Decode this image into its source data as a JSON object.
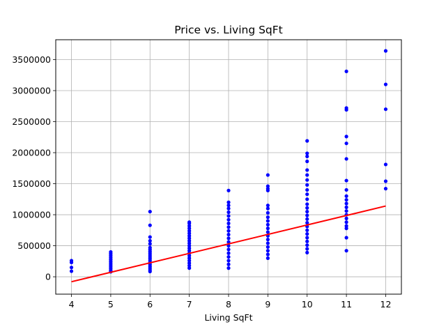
{
  "chart_data": {
    "type": "scatter",
    "title": "Price vs. Living SqFt",
    "xlabel": "Living SqFt",
    "ylabel": "",
    "xlim": [
      3.6,
      12.4
    ],
    "ylim": [
      -280000,
      3820000
    ],
    "x_ticks": [
      4,
      5,
      6,
      7,
      8,
      9,
      10,
      11,
      12
    ],
    "y_ticks": [
      0,
      500000,
      1000000,
      1500000,
      2000000,
      2500000,
      3000000,
      3500000
    ],
    "grid": true,
    "colors": {
      "points": "#0000ff",
      "line": "#ff0000"
    },
    "series": [
      {
        "type": "scatter",
        "points": [
          [
            4,
            90000
          ],
          [
            4,
            150000
          ],
          [
            4,
            230000
          ],
          [
            4,
            260000
          ],
          [
            5,
            80000
          ],
          [
            5,
            100000
          ],
          [
            5,
            130000
          ],
          [
            5,
            160000
          ],
          [
            5,
            190000
          ],
          [
            5,
            220000
          ],
          [
            5,
            250000
          ],
          [
            5,
            280000
          ],
          [
            5,
            310000
          ],
          [
            5,
            340000
          ],
          [
            5,
            370000
          ],
          [
            5,
            400000
          ],
          [
            6,
            85000
          ],
          [
            6,
            110000
          ],
          [
            6,
            140000
          ],
          [
            6,
            170000
          ],
          [
            6,
            200000
          ],
          [
            6,
            230000
          ],
          [
            6,
            260000
          ],
          [
            6,
            290000
          ],
          [
            6,
            320000
          ],
          [
            6,
            350000
          ],
          [
            6,
            380000
          ],
          [
            6,
            410000
          ],
          [
            6,
            440000
          ],
          [
            6,
            470000
          ],
          [
            6,
            530000
          ],
          [
            6,
            580000
          ],
          [
            6,
            640000
          ],
          [
            6,
            830000
          ],
          [
            6,
            1050000
          ],
          [
            7,
            140000
          ],
          [
            7,
            180000
          ],
          [
            7,
            220000
          ],
          [
            7,
            260000
          ],
          [
            7,
            300000
          ],
          [
            7,
            340000
          ],
          [
            7,
            380000
          ],
          [
            7,
            420000
          ],
          [
            7,
            460000
          ],
          [
            7,
            500000
          ],
          [
            7,
            540000
          ],
          [
            7,
            580000
          ],
          [
            7,
            620000
          ],
          [
            7,
            660000
          ],
          [
            7,
            700000
          ],
          [
            7,
            740000
          ],
          [
            7,
            780000
          ],
          [
            7,
            820000
          ],
          [
            7,
            860000
          ],
          [
            7,
            880000
          ],
          [
            8,
            140000
          ],
          [
            8,
            200000
          ],
          [
            8,
            260000
          ],
          [
            8,
            320000
          ],
          [
            8,
            380000
          ],
          [
            8,
            440000
          ],
          [
            8,
            500000
          ],
          [
            8,
            560000
          ],
          [
            8,
            620000
          ],
          [
            8,
            680000
          ],
          [
            8,
            740000
          ],
          [
            8,
            800000
          ],
          [
            8,
            860000
          ],
          [
            8,
            920000
          ],
          [
            8,
            980000
          ],
          [
            8,
            1040000
          ],
          [
            8,
            1100000
          ],
          [
            8,
            1150000
          ],
          [
            8,
            1200000
          ],
          [
            8,
            1390000
          ],
          [
            9,
            300000
          ],
          [
            9,
            360000
          ],
          [
            9,
            420000
          ],
          [
            9,
            480000
          ],
          [
            9,
            540000
          ],
          [
            9,
            600000
          ],
          [
            9,
            660000
          ],
          [
            9,
            720000
          ],
          [
            9,
            780000
          ],
          [
            9,
            840000
          ],
          [
            9,
            900000
          ],
          [
            9,
            960000
          ],
          [
            9,
            1030000
          ],
          [
            9,
            1100000
          ],
          [
            9,
            1150000
          ],
          [
            9,
            1390000
          ],
          [
            9,
            1420000
          ],
          [
            9,
            1460000
          ],
          [
            9,
            1640000
          ],
          [
            10,
            390000
          ],
          [
            10,
            450000
          ],
          [
            10,
            510000
          ],
          [
            10,
            570000
          ],
          [
            10,
            630000
          ],
          [
            10,
            690000
          ],
          [
            10,
            750000
          ],
          [
            10,
            810000
          ],
          [
            10,
            870000
          ],
          [
            10,
            930000
          ],
          [
            10,
            990000
          ],
          [
            10,
            1050000
          ],
          [
            10,
            1110000
          ],
          [
            10,
            1170000
          ],
          [
            10,
            1250000
          ],
          [
            10,
            1330000
          ],
          [
            10,
            1400000
          ],
          [
            10,
            1480000
          ],
          [
            10,
            1560000
          ],
          [
            10,
            1640000
          ],
          [
            10,
            1720000
          ],
          [
            10,
            1860000
          ],
          [
            10,
            1940000
          ],
          [
            10,
            1990000
          ],
          [
            10,
            2190000
          ],
          [
            11,
            420000
          ],
          [
            11,
            630000
          ],
          [
            11,
            780000
          ],
          [
            11,
            820000
          ],
          [
            11,
            880000
          ],
          [
            11,
            940000
          ],
          [
            11,
            1000000
          ],
          [
            11,
            1060000
          ],
          [
            11,
            1120000
          ],
          [
            11,
            1180000
          ],
          [
            11,
            1240000
          ],
          [
            11,
            1300000
          ],
          [
            11,
            1400000
          ],
          [
            11,
            1550000
          ],
          [
            11,
            1900000
          ],
          [
            11,
            2150000
          ],
          [
            11,
            2260000
          ],
          [
            11,
            2690000
          ],
          [
            11,
            2720000
          ],
          [
            11,
            3310000
          ],
          [
            12,
            1420000
          ],
          [
            12,
            1540000
          ],
          [
            12,
            1810000
          ],
          [
            12,
            2700000
          ],
          [
            12,
            3100000
          ],
          [
            12,
            3640000
          ]
        ]
      },
      {
        "type": "line",
        "points": [
          [
            4,
            -80000
          ],
          [
            12,
            1140000
          ]
        ]
      }
    ]
  }
}
